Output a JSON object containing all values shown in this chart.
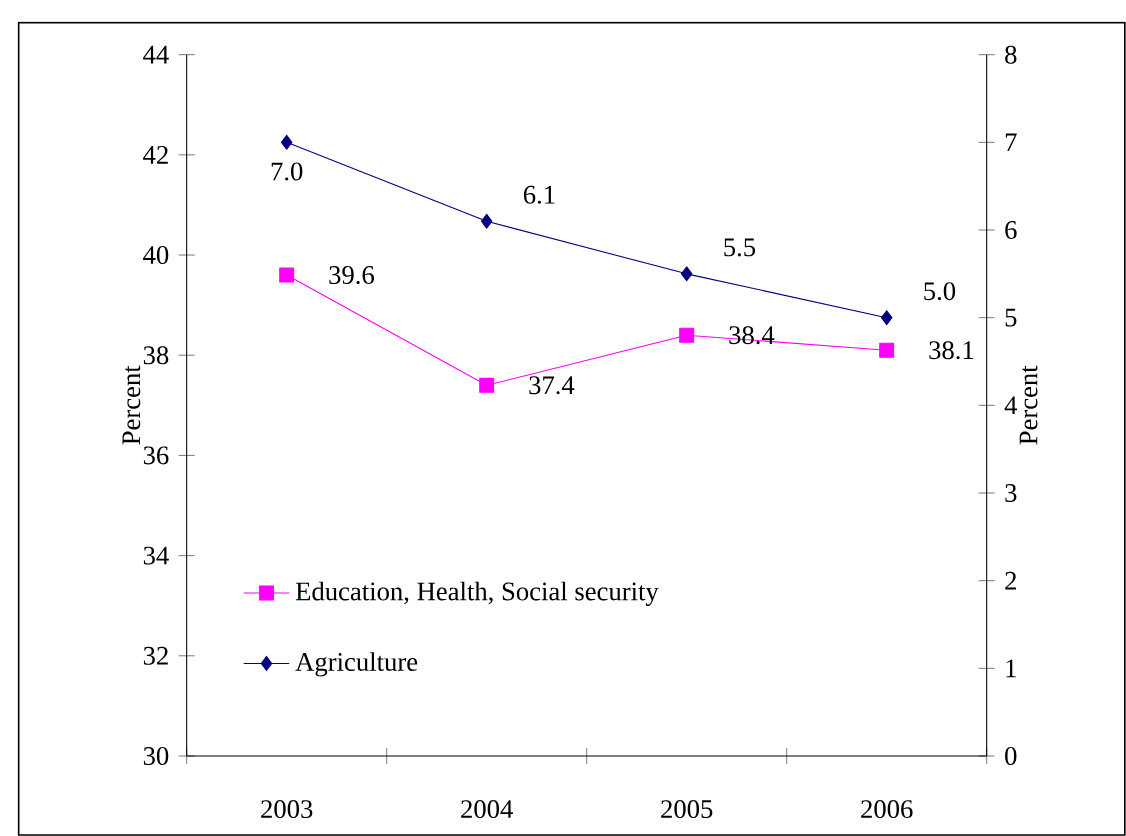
{
  "chart_data": {
    "type": "line",
    "categories": [
      "2003",
      "2004",
      "2005",
      "2006"
    ],
    "series": [
      {
        "name": "Education, Health, Social security",
        "color": "#ff00ff",
        "marker": "square",
        "values": [
          39.6,
          37.4,
          38.4,
          38.1
        ]
      },
      {
        "name": "Agriculture",
        "color": "#000080",
        "marker": "diamond",
        "axis": "y2",
        "values": [
          7.0,
          6.1,
          5.5,
          5.0
        ],
        "value_labels": [
          "7.0",
          "6.1",
          "5.5",
          "5.0"
        ]
      }
    ],
    "ylabel": "Percent",
    "y2label": "Percent",
    "ylim": [
      30,
      44
    ],
    "yticks": [
      30,
      32,
      34,
      36,
      38,
      40,
      42,
      44
    ],
    "y2lim": [
      0,
      8
    ],
    "y2ticks": [
      0,
      1,
      2,
      3,
      4,
      5,
      6,
      7,
      8
    ],
    "data_labels": true,
    "legend": "bottom left",
    "grid": false
  }
}
